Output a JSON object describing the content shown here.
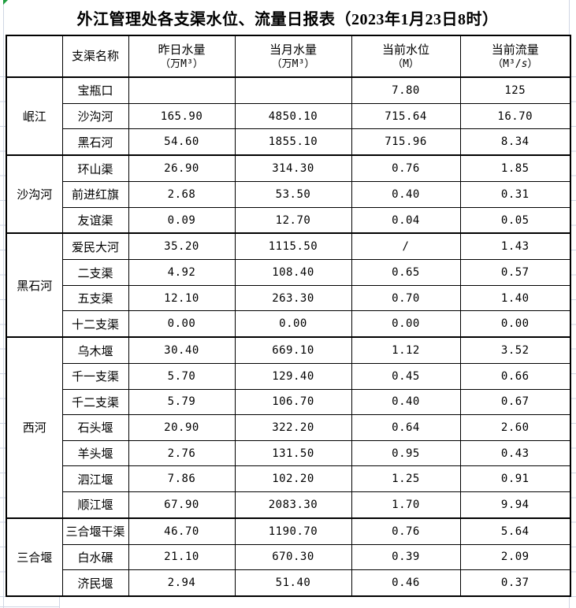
{
  "title": "外江管理处各支渠水位、流量日报表（2023年1月23日8时）",
  "colors": {
    "border": "#000000",
    "gridline": "#cfd6e4",
    "marker_green": "#1f9d3f",
    "text": "#000000"
  },
  "table": {
    "columns": {
      "name_header": "支渠名称",
      "yesterday": {
        "line1": "昨日水量",
        "line2": "（万M³）"
      },
      "month": {
        "line1": "当月水量",
        "line2": "（万M³）"
      },
      "level": {
        "line1": "当前水位",
        "line2": "（M）"
      },
      "flow": {
        "line1": "当前流量",
        "line2_parts": [
          "（M³/",
          "s",
          "）"
        ]
      }
    },
    "groups": [
      {
        "label": "岷江",
        "rows": [
          {
            "name": "宝瓶口",
            "yesterday": "",
            "month": "",
            "level": "7.80",
            "flow": "125"
          },
          {
            "name": "沙沟河",
            "yesterday": "165.90",
            "month": "4850.10",
            "level": "715.64",
            "flow": "16.70"
          },
          {
            "name": "黑石河",
            "yesterday": "54.60",
            "month": "1855.10",
            "level": "715.96",
            "flow": "8.34"
          }
        ]
      },
      {
        "label": "沙沟河",
        "rows": [
          {
            "name": "环山渠",
            "yesterday": "26.90",
            "month": "314.30",
            "level": "0.76",
            "flow": "1.85"
          },
          {
            "name": "前进红旗",
            "yesterday": "2.68",
            "month": "53.50",
            "level": "0.40",
            "flow": "0.31"
          },
          {
            "name": "友谊渠",
            "yesterday": "0.09",
            "month": "12.70",
            "level": "0.04",
            "flow": "0.05"
          }
        ]
      },
      {
        "label": "黑石河",
        "rows": [
          {
            "name": "爱民大河",
            "yesterday": "35.20",
            "month": "1115.50",
            "level": "/",
            "flow": "1.43"
          },
          {
            "name": "二支渠",
            "yesterday": "4.92",
            "month": "108.40",
            "level": "0.65",
            "flow": "0.57"
          },
          {
            "name": "五支渠",
            "yesterday": "12.10",
            "month": "263.30",
            "level": "0.70",
            "flow": "1.40"
          },
          {
            "name": "十二支渠",
            "yesterday": "0.00",
            "month": "0.00",
            "level": "0.00",
            "flow": "0.00"
          }
        ]
      },
      {
        "label": "西河",
        "rows": [
          {
            "name": "乌木堰",
            "yesterday": "30.40",
            "month": "669.10",
            "level": "1.12",
            "flow": "3.52"
          },
          {
            "name": "千一支渠",
            "yesterday": "5.70",
            "month": "129.40",
            "level": "0.45",
            "flow": "0.66"
          },
          {
            "name": "千二支渠",
            "yesterday": "5.79",
            "month": "106.70",
            "level": "0.40",
            "flow": "0.67"
          },
          {
            "name": "石头堰",
            "yesterday": "20.90",
            "month": "322.20",
            "level": "0.64",
            "flow": "2.60"
          },
          {
            "name": "羊头堰",
            "yesterday": "2.76",
            "month": "131.50",
            "level": "0.95",
            "flow": "0.43"
          },
          {
            "name": "泗江堰",
            "yesterday": "7.86",
            "month": "102.20",
            "level": "1.25",
            "flow": "0.91"
          },
          {
            "name": "顺江堰",
            "yesterday": "67.90",
            "month": "2083.30",
            "level": "1.70",
            "flow": "9.94"
          }
        ]
      },
      {
        "label": "三合堰",
        "rows": [
          {
            "name": "三合堰干渠",
            "yesterday": "46.70",
            "month": "1190.70",
            "level": "0.76",
            "flow": "5.64"
          },
          {
            "name": "白水碾",
            "yesterday": "21.10",
            "month": "670.30",
            "level": "0.39",
            "flow": "2.09"
          },
          {
            "name": "济民堰",
            "yesterday": "2.94",
            "month": "51.40",
            "level": "0.46",
            "flow": "0.37"
          }
        ]
      }
    ]
  }
}
